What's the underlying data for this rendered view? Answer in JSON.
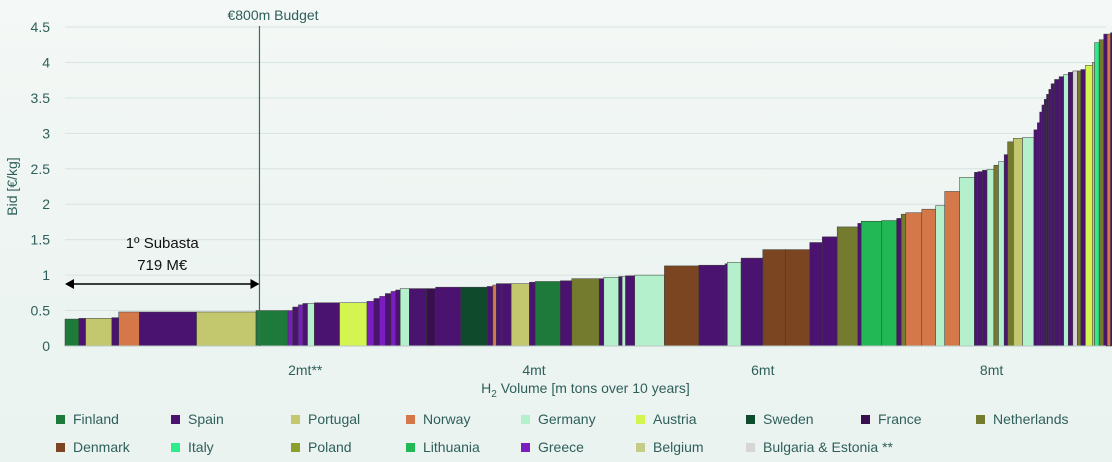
{
  "chart_data": {
    "type": "bar",
    "title": "",
    "ylabel": "Bid [€/kg]",
    "xlabel_prefix": "H",
    "xlabel_sub": "2",
    "xlabel_suffix": " Volume [m tons over 10 years]",
    "ylim": [
      0,
      4.5
    ],
    "xlim": [
      0,
      9.1
    ],
    "y_ticks": [
      "0",
      "0.5",
      "1",
      "1.5",
      "2",
      "2.5",
      "3",
      "3.5",
      "4",
      "4.5"
    ],
    "x_ticks": [
      {
        "label": "2mt**",
        "value": 2.1
      },
      {
        "label": "4mt",
        "value": 4.1
      },
      {
        "label": "6mt",
        "value": 6.1
      },
      {
        "label": "8mt",
        "value": 8.1
      }
    ],
    "grid": "horizontal",
    "budget_line": {
      "label": "€800m Budget",
      "x": 1.7
    },
    "annotation": {
      "line1": "1º Subasta",
      "line2": "719 M€",
      "x_start": 0,
      "x_end": 1.7
    },
    "countries": {
      "Finland": "#1e7a3a",
      "Spain": "#4b1370",
      "Portugal": "#c3c86e",
      "Norway": "#d4784a",
      "Germany": "#b4f0cc",
      "Austria": "#d4f550",
      "Sweden": "#0f4a2c",
      "France": "#3a0f50",
      "Netherlands": "#747a2e",
      "Denmark": "#7b4522",
      "Italy": "#2eec8a",
      "Poland": "#8aa02a",
      "Lithuania": "#22b855",
      "Greece": "#7a1ec0",
      "Belgium": "#c4cc88",
      "Bulgaria & Estonia **": "#d6d6d6"
    },
    "bars": [
      {
        "c": "Finland",
        "w": 0.12,
        "v": 0.38
      },
      {
        "c": "Spain",
        "w": 0.06,
        "v": 0.39
      },
      {
        "c": "Portugal",
        "w": 0.23,
        "v": 0.39
      },
      {
        "c": "Spain",
        "w": 0.06,
        "v": 0.4
      },
      {
        "c": "Norway",
        "w": 0.18,
        "v": 0.48
      },
      {
        "c": "Spain",
        "w": 0.5,
        "v": 0.48
      },
      {
        "c": "Portugal",
        "w": 0.52,
        "v": 0.48
      },
      {
        "c": "Finland",
        "w": 0.28,
        "v": 0.5
      },
      {
        "c": "Greece",
        "w": 0.04,
        "v": 0.5
      },
      {
        "c": "Spain",
        "w": 0.05,
        "v": 0.55
      },
      {
        "c": "Greece",
        "w": 0.04,
        "v": 0.58
      },
      {
        "c": "Spain",
        "w": 0.04,
        "v": 0.6
      },
      {
        "c": "Germany",
        "w": 0.06,
        "v": 0.6
      },
      {
        "c": "Spain",
        "w": 0.22,
        "v": 0.61
      },
      {
        "c": "Austria",
        "w": 0.24,
        "v": 0.61
      },
      {
        "c": "Greece",
        "w": 0.06,
        "v": 0.63
      },
      {
        "c": "Spain",
        "w": 0.05,
        "v": 0.67
      },
      {
        "c": "Greece",
        "w": 0.05,
        "v": 0.7
      },
      {
        "c": "Spain",
        "w": 0.05,
        "v": 0.74
      },
      {
        "c": "Greece",
        "w": 0.04,
        "v": 0.77
      },
      {
        "c": "Spain",
        "w": 0.04,
        "v": 0.79
      },
      {
        "c": "Germany",
        "w": 0.08,
        "v": 0.81
      },
      {
        "c": "Spain",
        "w": 0.15,
        "v": 0.81
      },
      {
        "c": "France",
        "w": 0.08,
        "v": 0.81
      },
      {
        "c": "Spain",
        "w": 0.22,
        "v": 0.83
      },
      {
        "c": "Sweden",
        "w": 0.23,
        "v": 0.83
      },
      {
        "c": "Spain",
        "w": 0.05,
        "v": 0.84
      },
      {
        "c": "Norway",
        "w": 0.03,
        "v": 0.86
      },
      {
        "c": "Spain",
        "w": 0.05,
        "v": 0.88
      },
      {
        "c": "Spain",
        "w": 0.08,
        "v": 0.88
      },
      {
        "c": "Portugal",
        "w": 0.16,
        "v": 0.88
      },
      {
        "c": "Spain",
        "w": 0.05,
        "v": 0.9
      },
      {
        "c": "Finland",
        "w": 0.22,
        "v": 0.91
      },
      {
        "c": "Spain",
        "w": 0.1,
        "v": 0.92
      },
      {
        "c": "Netherlands",
        "w": 0.24,
        "v": 0.95
      },
      {
        "c": "Spain",
        "w": 0.04,
        "v": 0.95
      },
      {
        "c": "Germany",
        "w": 0.13,
        "v": 0.97
      },
      {
        "c": "Spain",
        "w": 0.03,
        "v": 0.98
      },
      {
        "c": "Germany",
        "w": 0.03,
        "v": 0.98
      },
      {
        "c": "Spain",
        "w": 0.08,
        "v": 0.99
      },
      {
        "c": "Germany",
        "w": 0.26,
        "v": 1.0
      },
      {
        "c": "Denmark",
        "w": 0.3,
        "v": 1.13
      },
      {
        "c": "Spain",
        "w": 0.23,
        "v": 1.14
      },
      {
        "c": "Spain",
        "w": 0.02,
        "v": 1.16
      },
      {
        "c": "Germany",
        "w": 0.12,
        "v": 1.18
      },
      {
        "c": "Spain",
        "w": 0.19,
        "v": 1.24
      },
      {
        "c": "Denmark",
        "w": 0.2,
        "v": 1.36
      },
      {
        "c": "Denmark",
        "w": 0.21,
        "v": 1.36
      },
      {
        "c": "Spain",
        "w": 0.11,
        "v": 1.46
      },
      {
        "c": "Spain",
        "w": 0.13,
        "v": 1.54
      },
      {
        "c": "Netherlands",
        "w": 0.18,
        "v": 1.68
      },
      {
        "c": "Spain",
        "w": 0.03,
        "v": 1.73
      },
      {
        "c": "Lithuania",
        "w": 0.18,
        "v": 1.76
      },
      {
        "c": "Lithuania",
        "w": 0.13,
        "v": 1.77
      },
      {
        "c": "Spain",
        "w": 0.04,
        "v": 1.8
      },
      {
        "c": "Netherlands",
        "w": 0.04,
        "v": 1.86
      },
      {
        "c": "Norway",
        "w": 0.14,
        "v": 1.88
      },
      {
        "c": "Norway",
        "w": 0.12,
        "v": 1.93
      },
      {
        "c": "Germany",
        "w": 0.08,
        "v": 1.98
      },
      {
        "c": "Norway",
        "w": 0.13,
        "v": 2.18
      },
      {
        "c": "Germany",
        "w": 0.13,
        "v": 2.38
      },
      {
        "c": "Spain",
        "w": 0.03,
        "v": 2.45
      },
      {
        "c": "Spain",
        "w": 0.04,
        "v": 2.46
      },
      {
        "c": "Spain",
        "w": 0.04,
        "v": 2.48
      },
      {
        "c": "Germany",
        "w": 0.06,
        "v": 2.49
      },
      {
        "c": "Netherlands",
        "w": 0.04,
        "v": 2.55
      },
      {
        "c": "Germany",
        "w": 0.05,
        "v": 2.6
      },
      {
        "c": "Spain",
        "w": 0.03,
        "v": 2.7
      },
      {
        "c": "Netherlands",
        "w": 0.05,
        "v": 2.88
      },
      {
        "c": "Portugal",
        "w": 0.08,
        "v": 2.93
      },
      {
        "c": "Germany",
        "w": 0.1,
        "v": 2.94
      },
      {
        "c": "Spain",
        "w": 0.03,
        "v": 3.05
      },
      {
        "c": "Spain",
        "w": 0.02,
        "v": 3.15
      },
      {
        "c": "Spain",
        "w": 0.02,
        "v": 3.3
      },
      {
        "c": "Spain",
        "w": 0.02,
        "v": 3.4
      },
      {
        "c": "Spain",
        "w": 0.02,
        "v": 3.48
      },
      {
        "c": "Spain",
        "w": 0.02,
        "v": 3.55
      },
      {
        "c": "Spain",
        "w": 0.02,
        "v": 3.62
      },
      {
        "c": "Spain",
        "w": 0.03,
        "v": 3.7
      },
      {
        "c": "Spain",
        "w": 0.04,
        "v": 3.76
      },
      {
        "c": "Spain",
        "w": 0.04,
        "v": 3.8
      },
      {
        "c": "Germany",
        "w": 0.04,
        "v": 3.83
      },
      {
        "c": "Spain",
        "w": 0.04,
        "v": 3.86
      },
      {
        "c": "Bulgaria & Estonia **",
        "w": 0.04,
        "v": 3.88
      },
      {
        "c": "Netherlands",
        "w": 0.03,
        "v": 3.88
      },
      {
        "c": "Spain",
        "w": 0.04,
        "v": 3.9
      },
      {
        "c": "Austria",
        "w": 0.06,
        "v": 3.96
      },
      {
        "c": "Portugal",
        "w": 0.02,
        "v": 4.0
      },
      {
        "c": "Italy",
        "w": 0.04,
        "v": 4.28
      },
      {
        "c": "Netherlands",
        "w": 0.04,
        "v": 4.32
      },
      {
        "c": "Spain",
        "w": 0.03,
        "v": 4.4
      },
      {
        "c": "Norway",
        "w": 0.03,
        "v": 4.4
      },
      {
        "c": "Spain",
        "w": 0.04,
        "v": 4.42
      },
      {
        "c": "Finland",
        "w": 0.03,
        "v": 4.42
      },
      {
        "c": "Sweden",
        "w": 0.02,
        "v": 4.45
      },
      {
        "c": "Spain",
        "w": 0.03,
        "v": 4.48
      }
    ]
  },
  "legend": [
    {
      "label": "Finland",
      "color": "#1e7a3a"
    },
    {
      "label": "Spain",
      "color": "#4b1370"
    },
    {
      "label": "Portugal",
      "color": "#c3c86e"
    },
    {
      "label": "Norway",
      "color": "#d4784a"
    },
    {
      "label": "Germany",
      "color": "#b4f0cc"
    },
    {
      "label": "Austria",
      "color": "#d4f550"
    },
    {
      "label": "Sweden",
      "color": "#0f4a2c"
    },
    {
      "label": "France",
      "color": "#3a0f50"
    },
    {
      "label": "Netherlands",
      "color": "#747a2e"
    },
    {
      "label": "Denmark",
      "color": "#7b4522"
    },
    {
      "label": "Italy",
      "color": "#2eec8a"
    },
    {
      "label": "Poland",
      "color": "#8aa02a"
    },
    {
      "label": "Lithuania",
      "color": "#22b855"
    },
    {
      "label": "Greece",
      "color": "#7a1ec0"
    },
    {
      "label": "Belgium",
      "color": "#c4cc88"
    },
    {
      "label": "Bulgaria & Estonia **",
      "color": "#d6d6d6"
    }
  ]
}
